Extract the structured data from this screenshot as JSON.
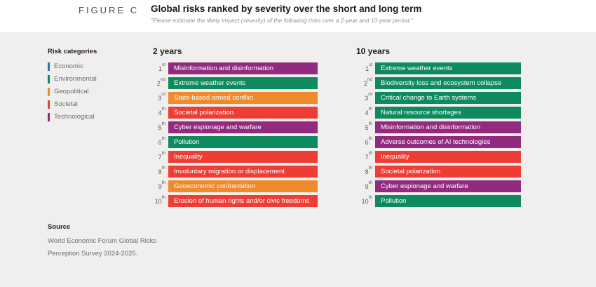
{
  "figure": {
    "label": "FIGURE C",
    "title": "Global risks ranked by severity over the short and long term",
    "subtitle": "\"Please estimate the likely impact (severity) of the following risks over a 2-year and 10-year period.\""
  },
  "legend": {
    "title": "Risk categories",
    "items": [
      {
        "label": "Economic",
        "color": "#1e78c8"
      },
      {
        "label": "Environmental",
        "color": "#0f8a5e"
      },
      {
        "label": "Geopolitical",
        "color": "#f1892d"
      },
      {
        "label": "Societal",
        "color": "#ee3d34"
      },
      {
        "label": "Technological",
        "color": "#922b80"
      }
    ]
  },
  "chart_data": {
    "type": "table",
    "title": "Global risks ranked by severity over the short and long term",
    "columns": [
      {
        "heading": "2 years",
        "rows": [
          {
            "rank": "1",
            "suffix": "st",
            "label": "Misinformation and disinformation",
            "category": "Technological"
          },
          {
            "rank": "2",
            "suffix": "nd",
            "label": "Extreme weather events",
            "category": "Environmental"
          },
          {
            "rank": "3",
            "suffix": "rd",
            "label": "State-based armed conflict",
            "category": "Geopolitical"
          },
          {
            "rank": "4",
            "suffix": "th",
            "label": "Societal polarization",
            "category": "Societal"
          },
          {
            "rank": "5",
            "suffix": "th",
            "label": "Cyber espionage and warfare",
            "category": "Technological"
          },
          {
            "rank": "6",
            "suffix": "th",
            "label": "Pollution",
            "category": "Environmental"
          },
          {
            "rank": "7",
            "suffix": "th",
            "label": "Inequality",
            "category": "Societal"
          },
          {
            "rank": "8",
            "suffix": "th",
            "label": "Involuntary migration or displacement",
            "category": "Societal"
          },
          {
            "rank": "9",
            "suffix": "th",
            "label": "Geoeconomic confrontation",
            "category": "Geopolitical"
          },
          {
            "rank": "10",
            "suffix": "th",
            "label": "Erosion of human rights and/or civic freedoms",
            "category": "Societal"
          }
        ]
      },
      {
        "heading": "10 years",
        "rows": [
          {
            "rank": "1",
            "suffix": "st",
            "label": "Extreme weather events",
            "category": "Environmental"
          },
          {
            "rank": "2",
            "suffix": "nd",
            "label": "Biodiversity loss and ecosystem collapse",
            "category": "Environmental"
          },
          {
            "rank": "3",
            "suffix": "rd",
            "label": "Critical change to Earth systems",
            "category": "Environmental"
          },
          {
            "rank": "4",
            "suffix": "th",
            "label": "Natural resource shortages",
            "category": "Environmental"
          },
          {
            "rank": "5",
            "suffix": "th",
            "label": "Misinformation and disinformation",
            "category": "Technological"
          },
          {
            "rank": "6",
            "suffix": "th",
            "label": "Adverse outcomes of AI technologies",
            "category": "Technological"
          },
          {
            "rank": "7",
            "suffix": "th",
            "label": "Inequality",
            "category": "Societal"
          },
          {
            "rank": "8",
            "suffix": "th",
            "label": "Societal polarization",
            "category": "Societal"
          },
          {
            "rank": "9",
            "suffix": "th",
            "label": "Cyber espionage and warfare",
            "category": "Technological"
          },
          {
            "rank": "10",
            "suffix": "th",
            "label": "Pollution",
            "category": "Environmental"
          }
        ]
      }
    ]
  },
  "source": {
    "title": "Source",
    "lines": [
      "World Economic Forum Global Risks",
      "Perception Survey 2024-2025."
    ]
  }
}
